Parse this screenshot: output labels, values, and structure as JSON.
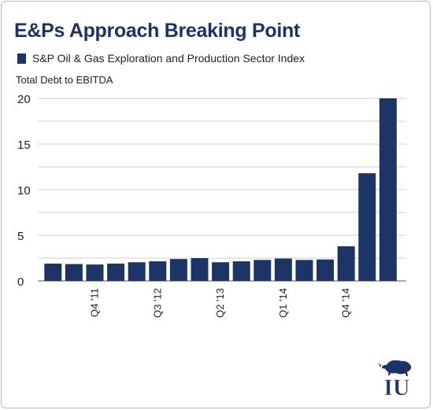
{
  "header": {
    "title": "E&Ps Approach Breaking Point"
  },
  "logo": {
    "icon": "iu-bull-logo-icon",
    "text": "IU"
  },
  "colors": {
    "bar": "#1c3566",
    "grid": "#cfcfcf",
    "title": "#1b3366"
  },
  "chart_data": {
    "type": "bar",
    "title": "E&Ps Approach Breaking Point",
    "ylabel": "Total Debt to EBITDA",
    "xlabel": "",
    "ylim": [
      0,
      20
    ],
    "yticks": [
      0,
      5,
      10,
      15,
      20
    ],
    "grid": true,
    "legend_position": "top-left",
    "series": [
      {
        "name": "S&P Oil & Gas Exploration and Production Sector Index",
        "values": [
          1.9,
          1.85,
          1.8,
          1.9,
          2.05,
          2.15,
          2.4,
          2.5,
          2.05,
          2.15,
          2.3,
          2.45,
          2.3,
          2.35,
          3.8,
          11.8,
          20.0
        ]
      }
    ],
    "categories": [
      "",
      "",
      "Q4 '11",
      "",
      "",
      "Q3 '12",
      "",
      "",
      "Q2 '13",
      "",
      "",
      "Q1 '14",
      "",
      "",
      "Q4 '14",
      "",
      ""
    ]
  }
}
